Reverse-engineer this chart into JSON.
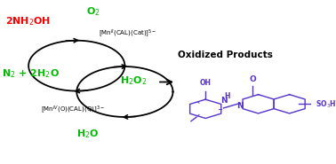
{
  "bg_color": "#ffffff",
  "red_color": "#ff0000",
  "green_color": "#00bb00",
  "black_color": "#000000",
  "purple_color": "#5533cc",
  "nh2oh_text": "2NH$_2$OH",
  "o2_text": "O$_2$",
  "catalyst_text": "[Mn$^{II}$(CAL)(Cat)]$^{5-}$",
  "n2h2o_text": "N$_2$ + 2H$_2$O",
  "h2o2_text": "H$_2$O$_2$",
  "oxidized_text": "Oxidized Products",
  "mniv_text": "[Mn$^{IV}$(O)(CAL)(Q)]$^{3-}$",
  "h2o_text": "H$_2$O",
  "c1x": 0.245,
  "c1y": 0.6,
  "c1r": 0.155,
  "c2x": 0.4,
  "c2y": 0.44,
  "c2r": 0.155
}
